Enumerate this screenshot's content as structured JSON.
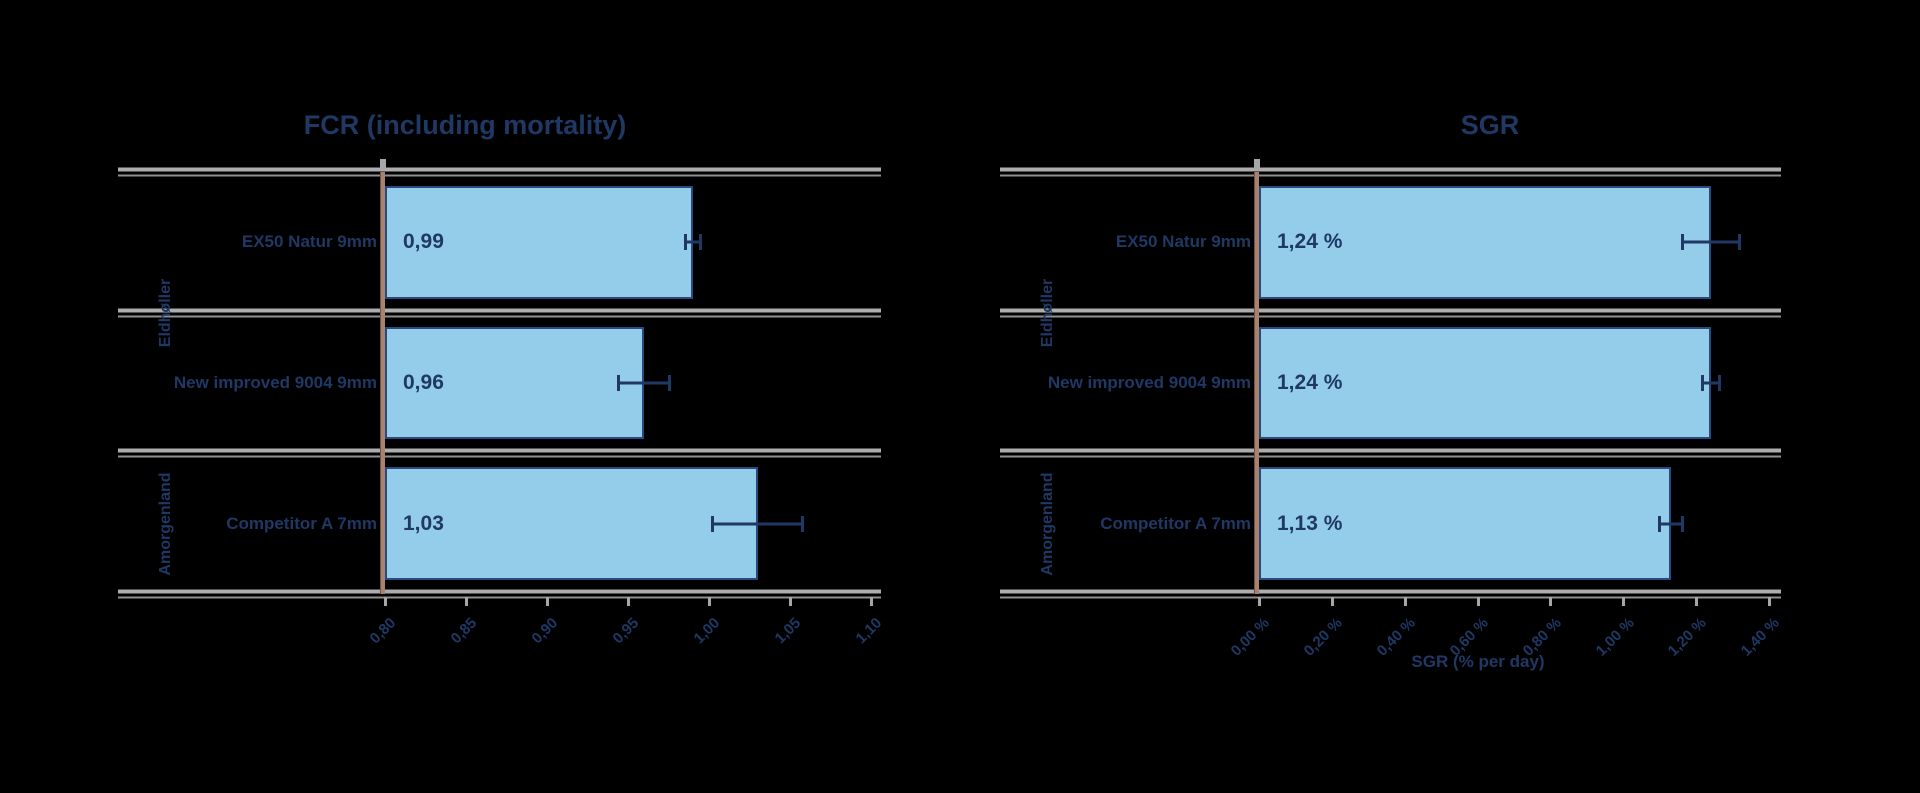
{
  "page": {
    "background": "#000000"
  },
  "colors": {
    "text": "#1F3864",
    "bar_fill": "#93CDE9",
    "bar_border": "#2A4A7F",
    "gridline_light": "#ADADAD",
    "gridline_dark": "#8F8F8F",
    "axis_line": "#A8826E",
    "tick": "#A6A6A6",
    "error_bar": "#1F3864"
  },
  "chart_data": [
    {
      "type": "bar",
      "orientation": "horizontal",
      "title": "FCR (including mortality)",
      "categories": [
        "EX50 Natur 9mm",
        "New improved 9004 9mm",
        "Competitor A 7mm"
      ],
      "values": [
        0.99,
        0.96,
        1.03
      ],
      "value_labels": [
        "0,99",
        "0,96",
        "1,03"
      ],
      "errors": [
        0.005,
        0.016,
        0.028
      ],
      "group_labels": [
        {
          "label": "Eldhøller",
          "rows": [
            0,
            1
          ]
        },
        {
          "label": "Amorgenland",
          "rows": [
            2
          ]
        }
      ],
      "xlim": [
        0.8,
        1.1
      ],
      "tick_values": [
        0.8,
        0.85,
        0.9,
        0.95,
        1.0,
        1.05,
        1.1
      ],
      "tick_labels": [
        "0,80",
        "0,85",
        "0,90",
        "0,95",
        "1,00",
        "1,05",
        "1,10"
      ],
      "xlabel": "",
      "grid": "double gray lines between rows",
      "legend": "none"
    },
    {
      "type": "bar",
      "orientation": "horizontal",
      "title": "SGR",
      "categories": [
        "EX50 Natur 9mm",
        "New improved 9004 9mm",
        "Competitor A 7mm"
      ],
      "values": [
        1.24,
        1.24,
        1.13
      ],
      "value_labels": [
        "1,24 %",
        "1,24 %",
        "1,13 %"
      ],
      "errors": [
        0.08,
        0.025,
        0.033
      ],
      "group_labels": [
        {
          "label": "Eldhøller",
          "rows": [
            0,
            1
          ]
        },
        {
          "label": "Amorgenland",
          "rows": [
            2
          ]
        }
      ],
      "xlim": [
        0.0,
        1.4
      ],
      "tick_values": [
        0.0,
        0.2,
        0.4,
        0.6,
        0.8,
        1.0,
        1.2,
        1.4
      ],
      "tick_labels": [
        "0,00 %",
        "0,20 %",
        "0,40 %",
        "0,60 %",
        "0,80 %",
        "1,00 %",
        "1,20 %",
        "1,40 %"
      ],
      "xlabel": "SGR (% per day)",
      "grid": "double gray lines between rows",
      "legend": "none"
    }
  ]
}
